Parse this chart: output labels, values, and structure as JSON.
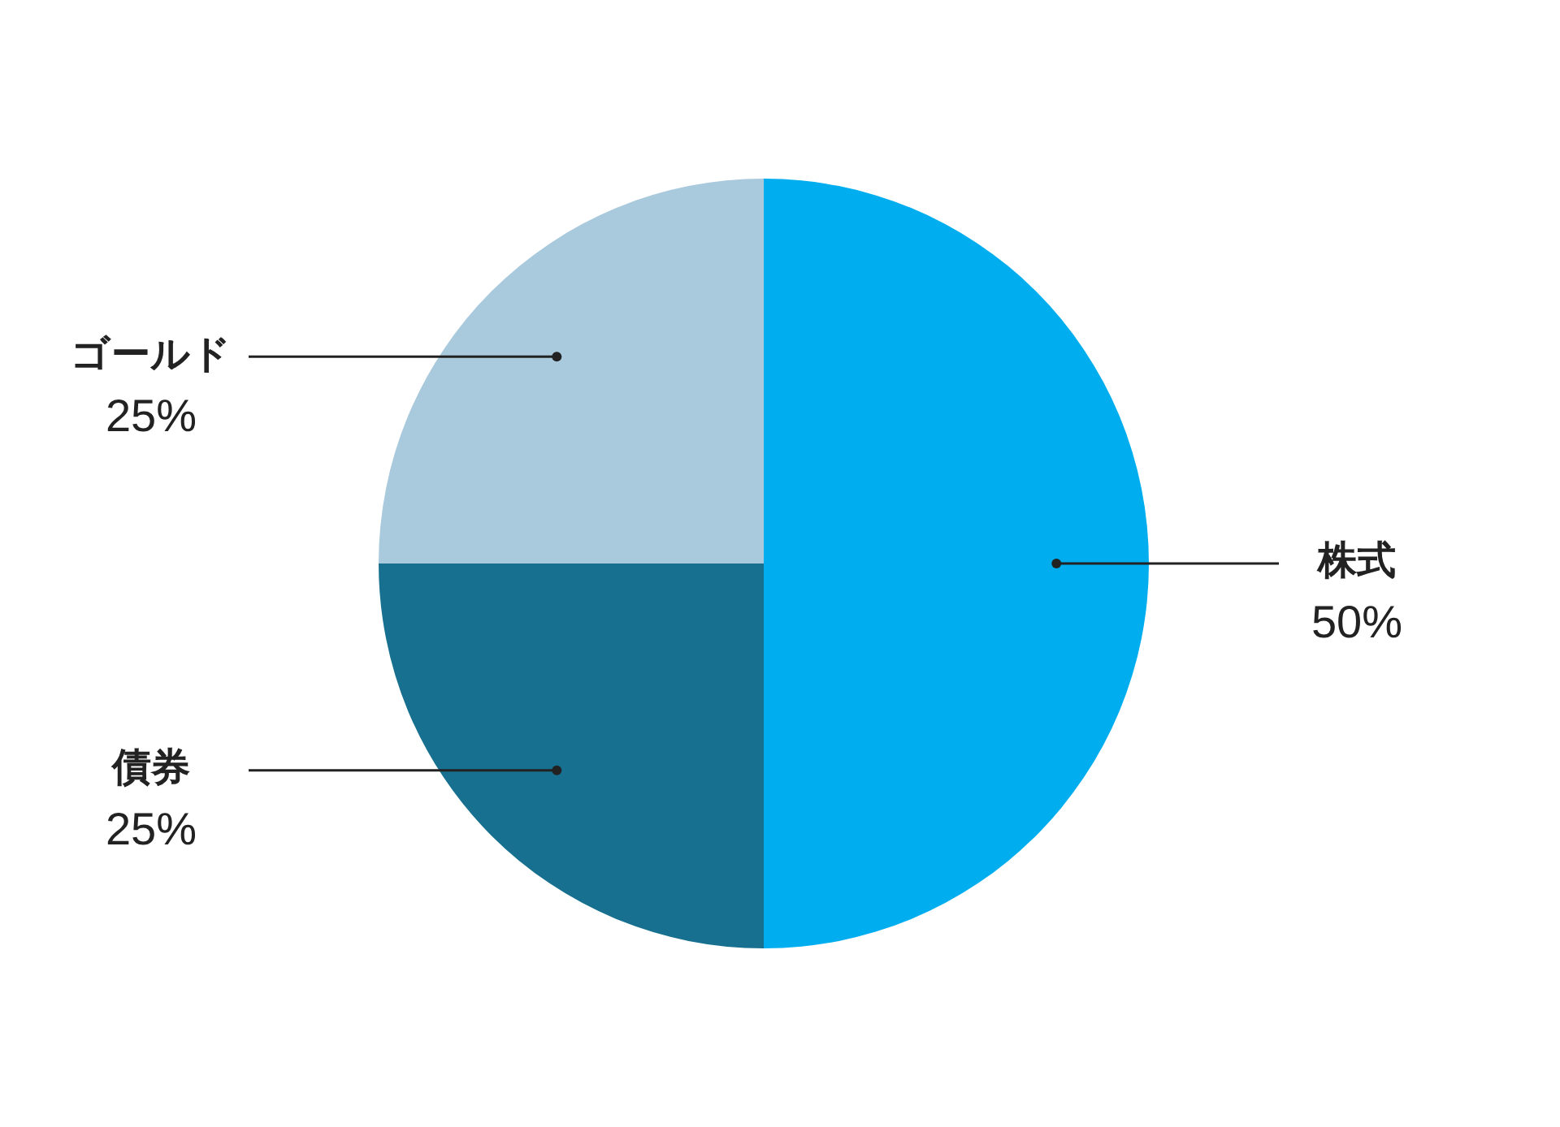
{
  "chart_data": {
    "type": "pie",
    "categories": [
      "株式",
      "債券",
      "ゴールド"
    ],
    "values": [
      50,
      25,
      25
    ],
    "colors": [
      "#00aeef",
      "#17708f",
      "#a9c9dd"
    ],
    "value_labels": [
      "50%",
      "25%",
      "25%"
    ],
    "legend": false
  }
}
